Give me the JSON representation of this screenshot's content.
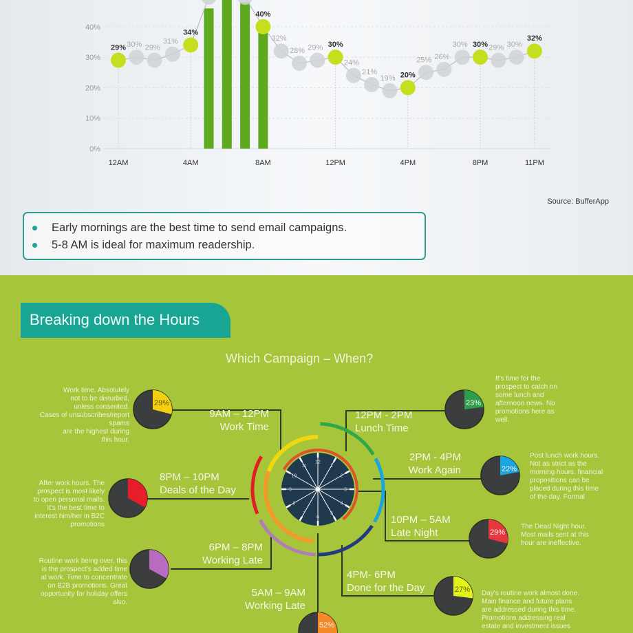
{
  "chart_data": {
    "type": "line",
    "x_categories": [
      "12AM",
      "1AM",
      "2AM",
      "3AM",
      "4AM",
      "5AM",
      "6AM",
      "7AM",
      "8AM",
      "9AM",
      "10AM",
      "11AM",
      "12PM",
      "1PM",
      "2PM",
      "3PM",
      "4PM",
      "5PM",
      "6PM",
      "7PM",
      "8PM",
      "9PM",
      "10PM",
      "11PM"
    ],
    "values": [
      29,
      30,
      29,
      31,
      34,
      null,
      null,
      null,
      40,
      32,
      28,
      29,
      30,
      24,
      21,
      19,
      20,
      25,
      26,
      30,
      30,
      29,
      30,
      32
    ],
    "highlighted_hours": [
      "12AM",
      "4AM",
      "8AM",
      "12PM",
      "4PM",
      "8PM",
      "11PM"
    ],
    "bars": {
      "categories": [
        "5AM",
        "6AM",
        "7AM",
        "8AM"
      ],
      "values": [
        46,
        52,
        48,
        38
      ]
    },
    "x_tick_labels": [
      "12AM",
      "4AM",
      "8AM",
      "12PM",
      "4PM",
      "8PM",
      "11PM"
    ],
    "y_tick_labels": [
      "0%",
      "10%",
      "20%",
      "30%",
      "40%"
    ],
    "ylim": [
      0,
      50
    ],
    "grid": true,
    "colors": {
      "highlight": "#c5df1f",
      "point": "#cfd2d6",
      "bar": "#5eaa1f",
      "line": "#b9bcc0"
    }
  },
  "source": "Source: BufferApp",
  "takeaways": [
    "Early mornings are the best time to send email campaigns.",
    "5-8 AM is ideal for maximum readership."
  ],
  "section_title": "Breaking down the Hours",
  "subtitle": "Which Campaign – When?",
  "segments": [
    {
      "time": "9AM – 12PM",
      "name": "Work Time",
      "percent": 29,
      "percent_label": "29%",
      "color": "#f3cf10",
      "desc": "Work time. Absolutely\nnot to be disturbed,\nunless consented.\nCases of unsubscribes/report\nspams\nare the highest during\nthis hour."
    },
    {
      "time": "12PM - 2PM",
      "name": "Lunch Time",
      "percent": 23,
      "percent_label": "23%",
      "color": "#2f9e4c",
      "desc": "It's time for the\nprospect to catch on\nsome lunch and\nafternoon news. No\npromotions here as\nwell."
    },
    {
      "time": "2PM - 4PM",
      "name": "Work Again",
      "percent": 22,
      "percent_label": "22%",
      "color": "#1ca6de",
      "desc": "Post lunch work hours.\nNot as strict as the\nmorning hours. financial\npropositions can be\nplaced during this time\nof the day. Formal"
    },
    {
      "time": "8PM – 10PM",
      "name": "Deals of the Day",
      "percent": 33,
      "percent_label": "",
      "color": "#e61e2a",
      "desc": "After work hours. The\nprospect is most likely\nto open personal mails.\nIt's the best time to\ninterest him/her in B2C\npromotions"
    },
    {
      "time": "10PM – 5AM",
      "name": "Late Night",
      "percent": 29,
      "percent_label": "29%",
      "color": "#e6373c",
      "desc": "The Dead Night hour.\nMost mails sent at this\nhour are ineffective."
    },
    {
      "time": "6PM – 8PM",
      "name": "Working Late",
      "percent": 33,
      "percent_label": "",
      "color": "#b86bc0",
      "desc": "Routine work being over, this\nis the prospect's added time\nat work. Time to concentrate\non B2B promotions. Great\nopportunity for holiday offers\nalso."
    },
    {
      "time": "4PM- 6PM",
      "name": "Done for the Day",
      "percent": 27,
      "percent_label": "27%",
      "color": "#e2f31c",
      "desc": "Day's routine work almost done.\nMain finance and future plans\nare addressed during this time.\nPromotions addressing real\nestate and investment issues"
    },
    {
      "time": "5AM – 9AM",
      "name": "Working Late",
      "percent": 52,
      "percent_label": "52%",
      "color": "#f38a26",
      "desc": ""
    }
  ],
  "clock": {
    "numbers": [
      "12",
      "1",
      "2",
      "3",
      "4",
      "5",
      "6",
      "7",
      "8",
      "9",
      "10",
      "11"
    ],
    "face_color": "#1f3a4e"
  }
}
